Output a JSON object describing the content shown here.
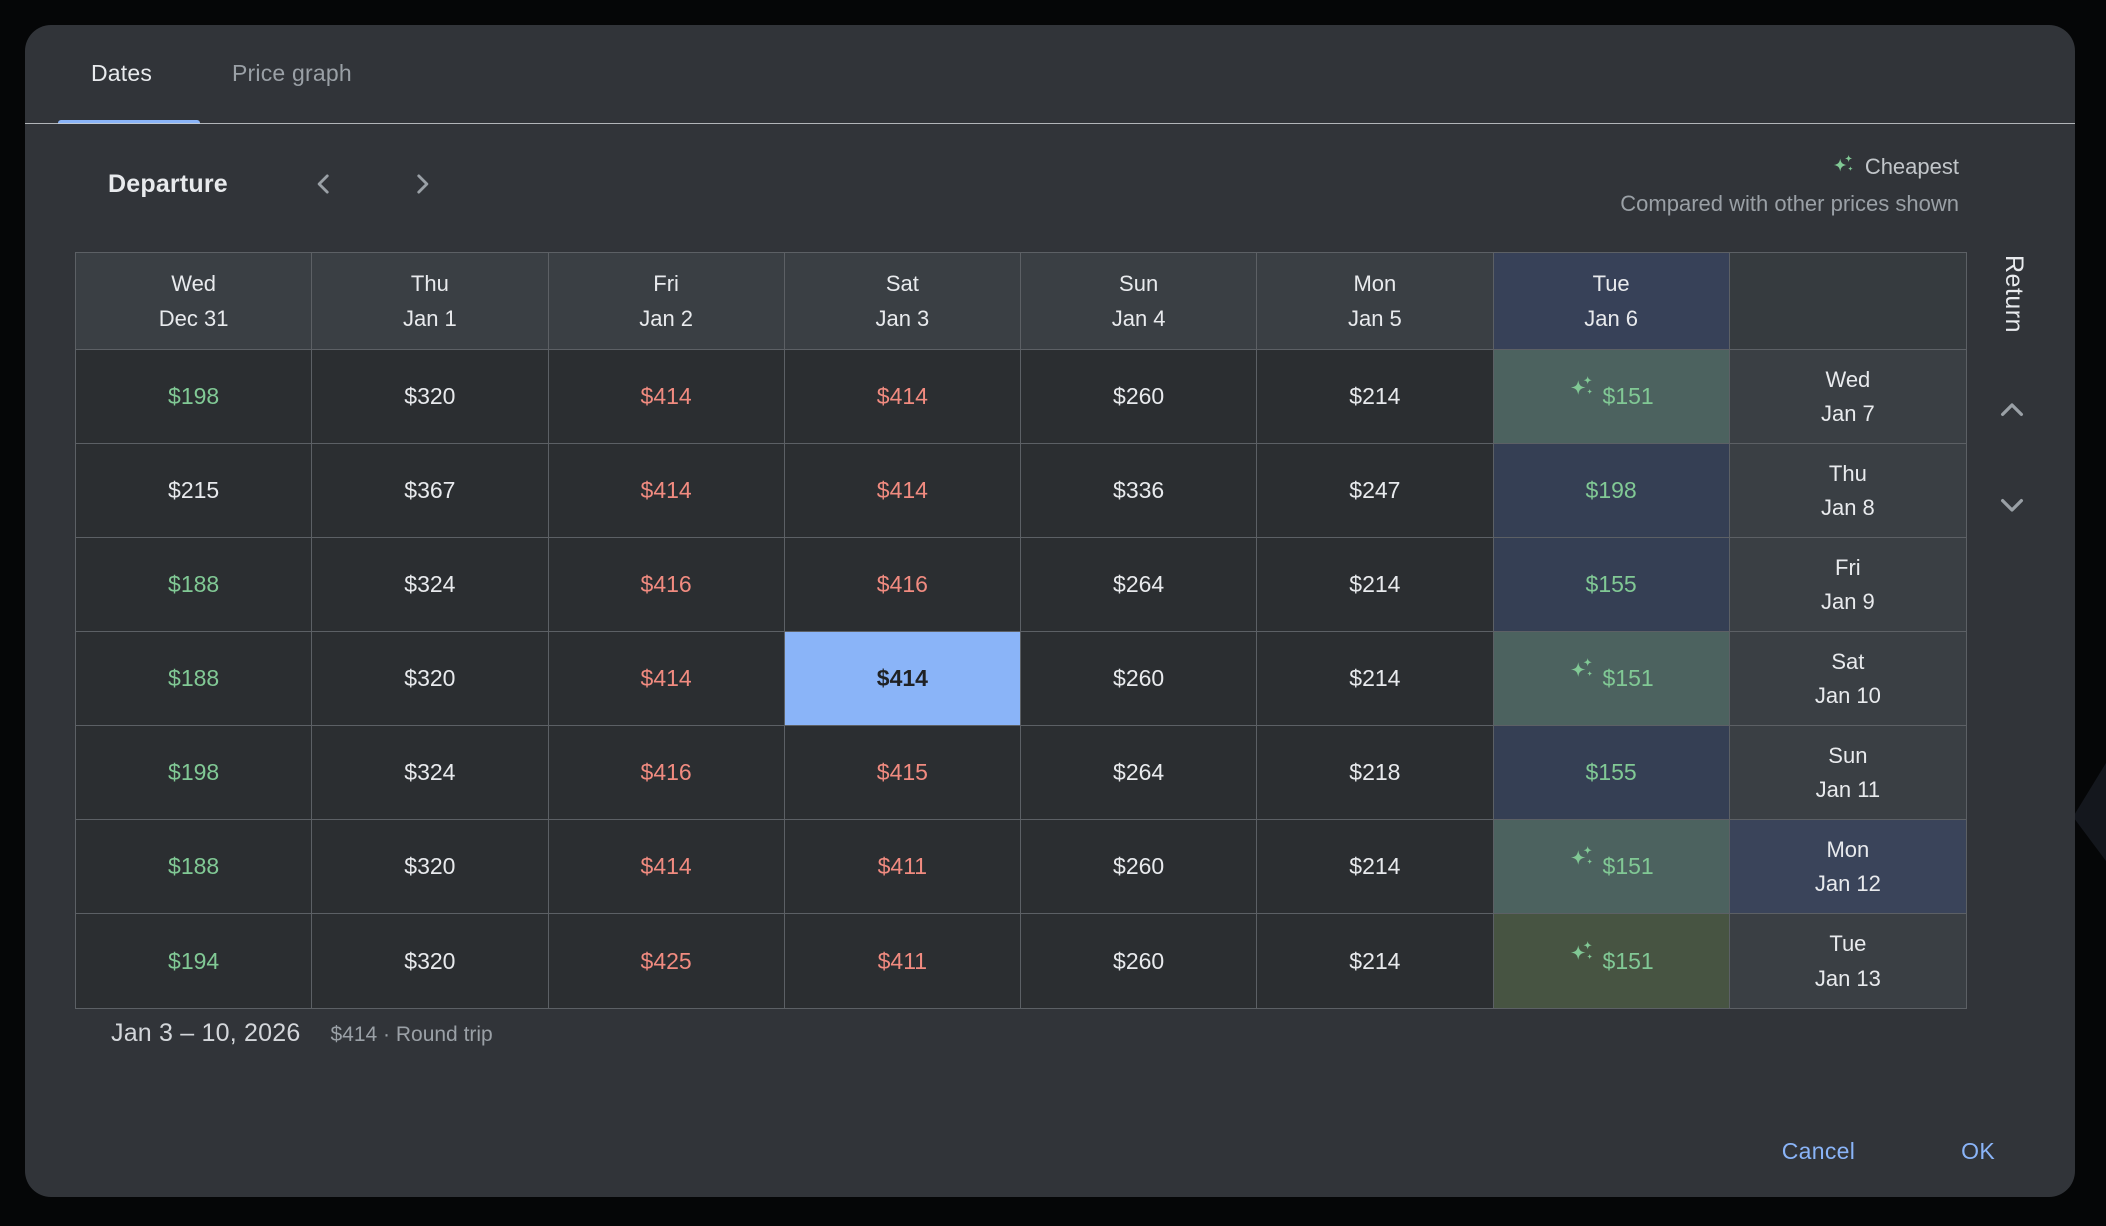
{
  "tabs": [
    {
      "label": "Dates",
      "active": true
    },
    {
      "label": "Price graph",
      "active": false
    }
  ],
  "controls": {
    "departure_label": "Departure"
  },
  "legend": {
    "cheapest_label": "Cheapest",
    "note": "Compared with other prices shown"
  },
  "icons": {
    "cheapest": "sparkle-icon",
    "prev": "chevron-left-icon",
    "next": "chevron-right-icon",
    "scroll_up": "chevron-up-icon",
    "scroll_down": "chevron-down-icon"
  },
  "colors": {
    "accent_blue": "#8ab4f8",
    "price_low_green": "#81c995",
    "price_high_red": "#f18b80",
    "price_neutral": "#e8eaed",
    "selected_cell_bg": "#8ab4f8",
    "cheapest_cell_teal": "#4c625f",
    "highlight_navy": "#374158",
    "cheapest_cell_olive": "#475442"
  },
  "table": {
    "return_axis_label": "Return",
    "column_headers": [
      {
        "day": "Wed",
        "date": "Dec 31",
        "highlight": false
      },
      {
        "day": "Thu",
        "date": "Jan 1",
        "highlight": false
      },
      {
        "day": "Fri",
        "date": "Jan 2",
        "highlight": false
      },
      {
        "day": "Sat",
        "date": "Jan 3",
        "highlight": false
      },
      {
        "day": "Sun",
        "date": "Jan 4",
        "highlight": false
      },
      {
        "day": "Mon",
        "date": "Jan 5",
        "highlight": false
      },
      {
        "day": "Tue",
        "date": "Jan 6",
        "highlight": true
      }
    ],
    "rows": [
      {
        "return_day": "Wed",
        "return_date": "Jan 7",
        "date_highlight": false,
        "cells": [
          {
            "price": "$198",
            "tone": "green"
          },
          {
            "price": "$320",
            "tone": "white"
          },
          {
            "price": "$414",
            "tone": "red"
          },
          {
            "price": "$414",
            "tone": "red"
          },
          {
            "price": "$260",
            "tone": "white"
          },
          {
            "price": "$214",
            "tone": "white"
          },
          {
            "price": "$151",
            "tone": "green",
            "bg": "teal",
            "sparkle": true
          }
        ]
      },
      {
        "return_day": "Thu",
        "return_date": "Jan 8",
        "date_highlight": false,
        "cells": [
          {
            "price": "$215",
            "tone": "white"
          },
          {
            "price": "$367",
            "tone": "white"
          },
          {
            "price": "$414",
            "tone": "red"
          },
          {
            "price": "$414",
            "tone": "red"
          },
          {
            "price": "$336",
            "tone": "white"
          },
          {
            "price": "$247",
            "tone": "white"
          },
          {
            "price": "$198",
            "tone": "green",
            "bg": "navy"
          }
        ]
      },
      {
        "return_day": "Fri",
        "return_date": "Jan 9",
        "date_highlight": false,
        "cells": [
          {
            "price": "$188",
            "tone": "green"
          },
          {
            "price": "$324",
            "tone": "white"
          },
          {
            "price": "$416",
            "tone": "red"
          },
          {
            "price": "$416",
            "tone": "red"
          },
          {
            "price": "$264",
            "tone": "white"
          },
          {
            "price": "$214",
            "tone": "white"
          },
          {
            "price": "$155",
            "tone": "green",
            "bg": "navy"
          }
        ]
      },
      {
        "return_day": "Sat",
        "return_date": "Jan 10",
        "date_highlight": false,
        "cells": [
          {
            "price": "$188",
            "tone": "green"
          },
          {
            "price": "$320",
            "tone": "white"
          },
          {
            "price": "$414",
            "tone": "red"
          },
          {
            "price": "$414",
            "tone": "white",
            "selected": true
          },
          {
            "price": "$260",
            "tone": "white"
          },
          {
            "price": "$214",
            "tone": "white"
          },
          {
            "price": "$151",
            "tone": "green",
            "bg": "teal",
            "sparkle": true
          }
        ]
      },
      {
        "return_day": "Sun",
        "return_date": "Jan 11",
        "date_highlight": false,
        "cells": [
          {
            "price": "$198",
            "tone": "green"
          },
          {
            "price": "$324",
            "tone": "white"
          },
          {
            "price": "$416",
            "tone": "red"
          },
          {
            "price": "$415",
            "tone": "red"
          },
          {
            "price": "$264",
            "tone": "white"
          },
          {
            "price": "$218",
            "tone": "white"
          },
          {
            "price": "$155",
            "tone": "green",
            "bg": "navy"
          }
        ]
      },
      {
        "return_day": "Mon",
        "return_date": "Jan 12",
        "date_highlight": true,
        "cells": [
          {
            "price": "$188",
            "tone": "green"
          },
          {
            "price": "$320",
            "tone": "white"
          },
          {
            "price": "$414",
            "tone": "red"
          },
          {
            "price": "$411",
            "tone": "red"
          },
          {
            "price": "$260",
            "tone": "white"
          },
          {
            "price": "$214",
            "tone": "white"
          },
          {
            "price": "$151",
            "tone": "green",
            "bg": "teal",
            "sparkle": true
          }
        ]
      },
      {
        "return_day": "Tue",
        "return_date": "Jan 13",
        "date_highlight": false,
        "cells": [
          {
            "price": "$194",
            "tone": "green"
          },
          {
            "price": "$320",
            "tone": "white"
          },
          {
            "price": "$425",
            "tone": "red"
          },
          {
            "price": "$411",
            "tone": "red"
          },
          {
            "price": "$260",
            "tone": "white"
          },
          {
            "price": "$214",
            "tone": "white"
          },
          {
            "price": "$151",
            "tone": "green",
            "bg": "olive",
            "sparkle": true
          }
        ]
      }
    ]
  },
  "summary": {
    "date_range": "Jan 3 – 10, 2026",
    "price_trip": "$414 · Round trip"
  },
  "footer": {
    "cancel_label": "Cancel",
    "ok_label": "OK"
  }
}
